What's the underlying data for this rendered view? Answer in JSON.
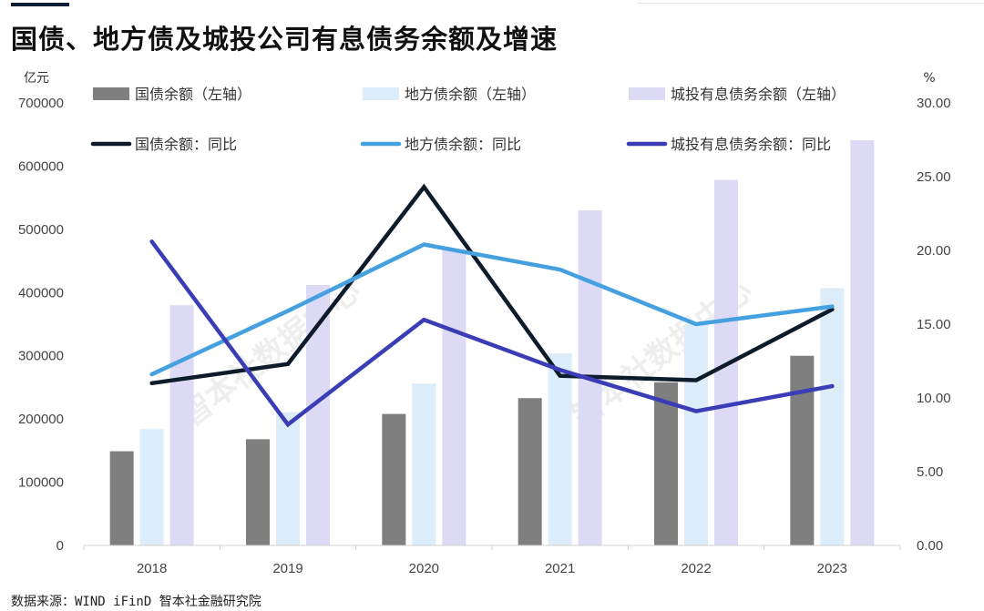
{
  "title": "国债、地方债及城投公司有息债务余额及增速",
  "source": "数据来源：WIND iFinD 智本社金融研究院",
  "watermark": "智本社数据中心",
  "chart_data": {
    "type": "bar",
    "categories": [
      "2018",
      "2019",
      "2020",
      "2021",
      "2022",
      "2023"
    ],
    "y_left": {
      "unit": "亿元",
      "ylim": [
        0,
        700000
      ],
      "ticks": [
        "0",
        "100000",
        "200000",
        "300000",
        "400000",
        "500000",
        "600000",
        "700000"
      ]
    },
    "y_right": {
      "unit": "%",
      "ylim": [
        0,
        30
      ],
      "ticks": [
        "0.00",
        "5.00",
        "10.00",
        "15.00",
        "20.00",
        "25.00",
        "30.00"
      ]
    },
    "bar_series": [
      {
        "name": "国债余额（左轴）",
        "color": "#7f7f7f",
        "values": [
          149000,
          168000,
          208000,
          233000,
          258000,
          300000
        ]
      },
      {
        "name": "地方债余额（左轴）",
        "color": "#dcecf8",
        "values": [
          184000,
          211000,
          256000,
          304000,
          350000,
          407000
        ]
      },
      {
        "name": "城投有息债务余额（左轴）",
        "color": "#dcdaf5",
        "values": [
          380000,
          412000,
          469000,
          530000,
          578000,
          641000
        ]
      }
    ],
    "line_series": [
      {
        "name": "国债余额：同比",
        "color": "#0d1b2a",
        "values": [
          11.0,
          12.3,
          24.3,
          11.5,
          11.2,
          16.0
        ]
      },
      {
        "name": "地方债余额：同比",
        "color": "#45a0e0",
        "values": [
          11.6,
          15.9,
          20.4,
          18.7,
          15.0,
          16.2
        ]
      },
      {
        "name": "城投有息债务余额：同比",
        "color": "#3a3db5",
        "values": [
          20.6,
          8.2,
          15.3,
          11.9,
          9.1,
          10.8
        ]
      }
    ],
    "legend_position": "top",
    "grid": false
  }
}
